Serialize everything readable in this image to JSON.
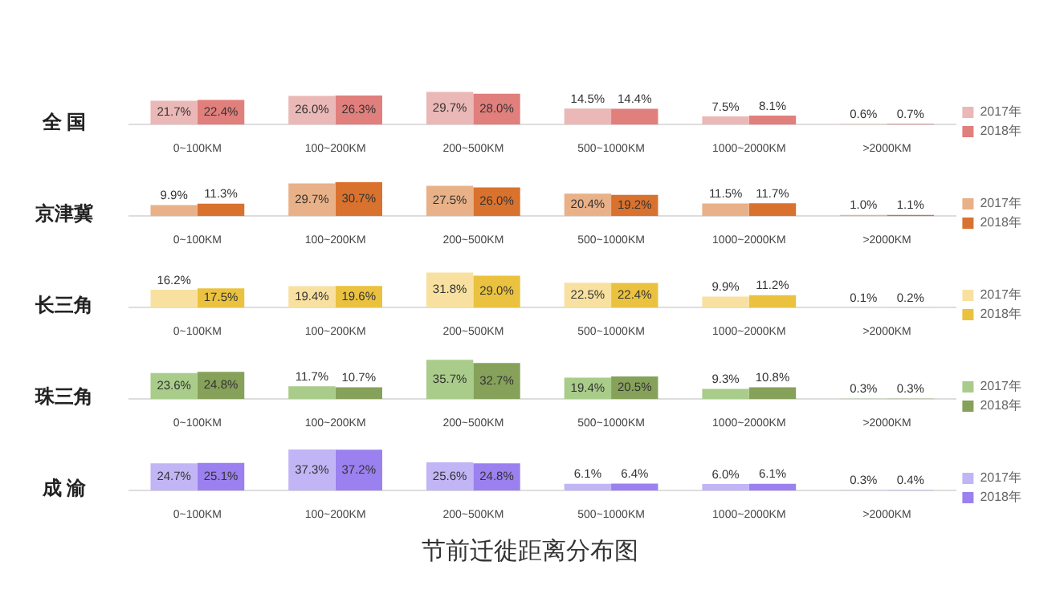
{
  "chart_data": [
    {
      "type": "bar",
      "title": "全 国",
      "categories": [
        "0~100KM",
        "100~200KM",
        "200~500KM",
        "500~1000KM",
        "1000~2000KM",
        ">2000KM"
      ],
      "legend": "right",
      "grid": false,
      "series": [
        {
          "name": "2017年",
          "color": "#eab8b6",
          "values": [
            21.7,
            26.0,
            29.7,
            14.5,
            7.5,
            0.6
          ],
          "value_labels": [
            "21.7%",
            "26.0%",
            "29.7%",
            "14.5%",
            "7.5%",
            "0.6%"
          ]
        },
        {
          "name": "2018年",
          "color": "#e07f7c",
          "values": [
            22.4,
            26.3,
            28.0,
            14.4,
            8.1,
            0.7
          ],
          "value_labels": [
            "22.4%",
            "26.3%",
            "28.0%",
            "14.4%",
            "8.1%",
            "0.7%"
          ]
        }
      ]
    },
    {
      "type": "bar",
      "title": "京津冀",
      "categories": [
        "0~100KM",
        "100~200KM",
        "200~500KM",
        "500~1000KM",
        "1000~2000KM",
        ">2000KM"
      ],
      "legend": "right",
      "grid": false,
      "series": [
        {
          "name": "2017年",
          "color": "#e9b187",
          "values": [
            9.9,
            29.7,
            27.5,
            20.4,
            11.5,
            1.0
          ],
          "value_labels": [
            "9.9%",
            "29.7%",
            "27.5%",
            "20.4%",
            "11.5%",
            "1.0%"
          ]
        },
        {
          "name": "2018年",
          "color": "#d9722e",
          "values": [
            11.3,
            30.7,
            26.0,
            19.2,
            11.7,
            1.1
          ],
          "value_labels": [
            "11.3%",
            "30.7%",
            "26.0%",
            "19.2%",
            "11.7%",
            "1.1%"
          ]
        }
      ]
    },
    {
      "type": "bar",
      "title": "长三角",
      "categories": [
        "0~100KM",
        "100~200KM",
        "200~500KM",
        "500~1000KM",
        "1000~2000KM",
        ">2000KM"
      ],
      "legend": "right",
      "grid": false,
      "series": [
        {
          "name": "2017年",
          "color": "#f8e1a0",
          "values": [
            16.2,
            19.4,
            31.8,
            22.5,
            9.9,
            0.1
          ],
          "value_labels": [
            "16.2%",
            "19.4%",
            "31.8%",
            "22.5%",
            "9.9%",
            "0.1%"
          ]
        },
        {
          "name": "2018年",
          "color": "#eac23f",
          "values": [
            17.5,
            19.6,
            29.0,
            22.4,
            11.2,
            0.2
          ],
          "value_labels": [
            "17.5%",
            "19.6%",
            "29.0%",
            "22.4%",
            "11.2%",
            "0.2%"
          ]
        }
      ]
    },
    {
      "type": "bar",
      "title": "珠三角",
      "categories": [
        "0~100KM",
        "100~200KM",
        "200~500KM",
        "500~1000KM",
        "1000~2000KM",
        ">2000KM"
      ],
      "legend": "right",
      "grid": false,
      "series": [
        {
          "name": "2017年",
          "color": "#a9cc8a",
          "values": [
            23.6,
            11.7,
            35.7,
            19.4,
            9.3,
            0.3
          ],
          "value_labels": [
            "23.6%",
            "11.7%",
            "35.7%",
            "19.4%",
            "9.3%",
            "0.3%"
          ]
        },
        {
          "name": "2018年",
          "color": "#86a15a",
          "values": [
            24.8,
            10.7,
            32.7,
            20.5,
            10.8,
            0.3
          ],
          "value_labels": [
            "24.8%",
            "10.7%",
            "32.7%",
            "20.5%",
            "10.8%",
            "0.3%"
          ]
        }
      ]
    },
    {
      "type": "bar",
      "title": "成 渝",
      "categories": [
        "0~100KM",
        "100~200KM",
        "200~500KM",
        "500~1000KM",
        "1000~2000KM",
        ">2000KM"
      ],
      "legend": "right",
      "grid": false,
      "annotations": [
        "节前迁徙距离分布图"
      ],
      "series": [
        {
          "name": "2017年",
          "color": "#c1b5f5",
          "values": [
            24.7,
            37.3,
            25.6,
            6.1,
            6.0,
            0.3
          ],
          "value_labels": [
            "24.7%",
            "37.3%",
            "25.6%",
            "6.1%",
            "6.0%",
            "0.3%"
          ]
        },
        {
          "name": "2018年",
          "color": "#9b80ef",
          "values": [
            25.1,
            37.2,
            24.8,
            6.4,
            6.1,
            0.4
          ],
          "value_labels": [
            "25.1%",
            "37.2%",
            "24.8%",
            "6.4%",
            "6.1%",
            "0.4%"
          ]
        }
      ]
    }
  ]
}
